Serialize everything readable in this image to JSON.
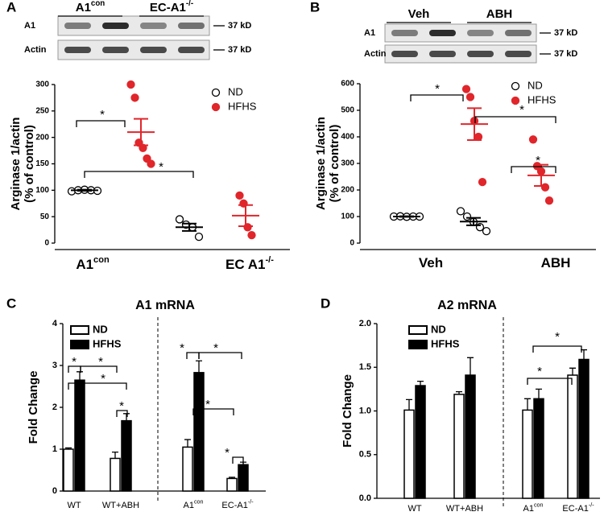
{
  "chart_data": [
    {
      "type": "scatter",
      "panel_label": "A",
      "blot": {
        "column_labels": [
          "A1",
          "EC-A1"
        ],
        "column_superscripts": [
          "con",
          "-/-"
        ],
        "rows": [
          "A1",
          "Actin"
        ],
        "marker": "37 kD"
      },
      "ylabel": [
        "Arginase 1/actin",
        "(% of control)"
      ],
      "categories": [
        "A1",
        "EC A1"
      ],
      "category_superscripts": [
        "con",
        "-/-"
      ],
      "ylim": [
        0,
        300
      ],
      "yticks": [
        0,
        50,
        100,
        150,
        200,
        250,
        300
      ],
      "series": [
        {
          "name": "ND",
          "color": "#000000",
          "points": [
            [
              98,
              100,
              101,
              100,
              99
            ],
            [
              45,
              35,
              30,
              12
            ]
          ],
          "mean": [
            100,
            30
          ],
          "sem": [
            1,
            7
          ]
        },
        {
          "name": "HFHS",
          "color": "#e0262b",
          "points": [
            [
              300,
              275,
              190,
              180,
              160,
              150
            ],
            [
              90,
              75,
              30,
              15
            ]
          ],
          "mean": [
            210,
            52
          ],
          "sem": [
            25,
            20
          ]
        }
      ],
      "annotations": [
        "*",
        "*"
      ]
    },
    {
      "type": "scatter",
      "panel_label": "B",
      "blot": {
        "column_labels": [
          "Veh",
          "ABH"
        ],
        "column_superscripts": [
          null,
          null
        ],
        "rows": [
          "A1",
          "Actin"
        ],
        "marker": "37 kD"
      },
      "ylabel": [
        "Arginase 1/actin",
        "(% of control)"
      ],
      "categories": [
        "Veh",
        "ABH"
      ],
      "category_superscripts": [
        null,
        null
      ],
      "ylim": [
        0,
        600
      ],
      "yticks": [
        0,
        100,
        200,
        300,
        400,
        500,
        600
      ],
      "series": [
        {
          "name": "ND",
          "color": "#000000",
          "points": [
            [
              100,
              101,
              99,
              100,
              100
            ],
            [
              120,
              100,
              80,
              60,
              45
            ]
          ],
          "mean": [
            100,
            81
          ],
          "sem": [
            1,
            14
          ]
        },
        {
          "name": "HFHS",
          "color": "#e0262b",
          "points": [
            [
              580,
              550,
              460,
              400,
              230
            ],
            [
              390,
              290,
              270,
              210,
              160
            ]
          ],
          "mean": [
            448,
            255
          ],
          "sem": [
            60,
            40
          ]
        }
      ],
      "annotations": [
        "*",
        "*",
        "*"
      ]
    },
    {
      "type": "bar",
      "panel_label": "C",
      "title": "A1 mRNA",
      "ylabel": "Fold Change",
      "categories": [
        "WT",
        "WT+ABH",
        "A1",
        "EC-A1"
      ],
      "category_superscripts": [
        null,
        null,
        "con",
        "-/-"
      ],
      "ylim": [
        0,
        4
      ],
      "yticks": [
        0,
        1,
        2,
        3,
        4
      ],
      "series": [
        {
          "name": "ND",
          "color": "#ffffff",
          "values": [
            1.0,
            0.78,
            1.05,
            0.3
          ],
          "errors": [
            0.03,
            0.15,
            0.18,
            0.03
          ]
        },
        {
          "name": "HFHS",
          "color": "#000000",
          "values": [
            2.65,
            1.68,
            2.83,
            0.63
          ],
          "errors": [
            0.2,
            0.17,
            0.28,
            0.06
          ]
        }
      ],
      "annotations": [
        "*",
        "*",
        "*",
        "*",
        "*",
        "*",
        "*",
        "*"
      ]
    },
    {
      "type": "bar",
      "panel_label": "D",
      "title": "A2 mRNA",
      "ylabel": "Fold Change",
      "categories": [
        "WT",
        "WT+ABH",
        "A1",
        "EC-A1"
      ],
      "category_superscripts": [
        null,
        null,
        "con",
        "-/-"
      ],
      "ylim": [
        0,
        2
      ],
      "yticks": [
        {
          "value": 0,
          "label": "0.0"
        },
        {
          "value": 0.5,
          "label": "0.5"
        },
        {
          "value": 1,
          "label": "1.0"
        },
        {
          "value": 1.5,
          "label": "1.5"
        },
        {
          "value": 2,
          "label": "2.0"
        }
      ],
      "series": [
        {
          "name": "ND",
          "color": "#ffffff",
          "values": [
            1.01,
            1.19,
            1.01,
            1.41
          ],
          "errors": [
            0.12,
            0.03,
            0.13,
            0.08
          ]
        },
        {
          "name": "HFHS",
          "color": "#000000",
          "values": [
            1.29,
            1.41,
            1.14,
            1.59
          ],
          "errors": [
            0.05,
            0.2,
            0.11,
            0.11
          ]
        }
      ],
      "annotations": [
        "*",
        "*"
      ]
    }
  ]
}
